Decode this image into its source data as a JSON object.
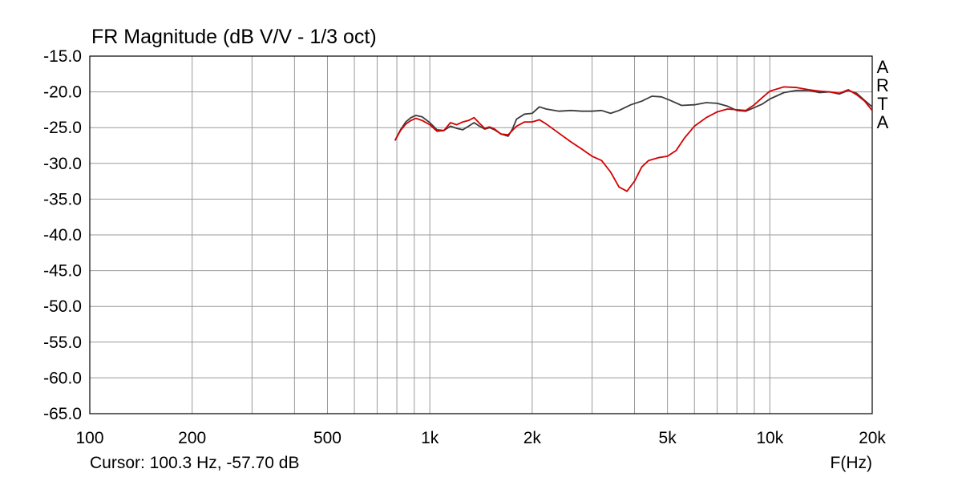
{
  "chart_data": {
    "type": "line",
    "title": "FR Magnitude (dB V/V - 1/3 oct)",
    "xlabel": "F(Hz)",
    "ylabel": "",
    "xscale": "log",
    "xlim": [
      100,
      20000
    ],
    "ylim": [
      -65,
      -15
    ],
    "grid": true,
    "x_tick_values": [
      100,
      200,
      500,
      1000,
      2000,
      5000,
      10000,
      20000
    ],
    "x_tick_labels": [
      "100",
      "200",
      "500",
      "1k",
      "2k",
      "5k",
      "10k",
      "20k"
    ],
    "y_tick_values": [
      -15,
      -20,
      -25,
      -30,
      -35,
      -40,
      -45,
      -50,
      -55,
      -60,
      -65
    ],
    "y_tick_labels": [
      "-15.0",
      "-20.0",
      "-25.0",
      "-30.0",
      "-35.0",
      "-40.0",
      "-45.0",
      "-50.0",
      "-55.0",
      "-60.0",
      "-65.0"
    ],
    "series": [
      {
        "color": "#3c3c3c",
        "points": [
          [
            790,
            -26.8
          ],
          [
            820,
            -25.3
          ],
          [
            850,
            -24.2
          ],
          [
            880,
            -23.6
          ],
          [
            910,
            -23.3
          ],
          [
            950,
            -23.5
          ],
          [
            1000,
            -24.3
          ],
          [
            1050,
            -25.3
          ],
          [
            1100,
            -25.4
          ],
          [
            1150,
            -24.8
          ],
          [
            1200,
            -25.1
          ],
          [
            1250,
            -25.3
          ],
          [
            1300,
            -24.8
          ],
          [
            1350,
            -24.3
          ],
          [
            1400,
            -24.8
          ],
          [
            1450,
            -25.2
          ],
          [
            1500,
            -25.0
          ],
          [
            1550,
            -25.3
          ],
          [
            1620,
            -25.9
          ],
          [
            1700,
            -26.2
          ],
          [
            1750,
            -25.2
          ],
          [
            1800,
            -23.8
          ],
          [
            1900,
            -23.1
          ],
          [
            2000,
            -23.0
          ],
          [
            2100,
            -22.1
          ],
          [
            2200,
            -22.4
          ],
          [
            2400,
            -22.7
          ],
          [
            2600,
            -22.6
          ],
          [
            2800,
            -22.7
          ],
          [
            3000,
            -22.7
          ],
          [
            3200,
            -22.6
          ],
          [
            3400,
            -23.0
          ],
          [
            3600,
            -22.6
          ],
          [
            3900,
            -21.8
          ],
          [
            4200,
            -21.3
          ],
          [
            4500,
            -20.6
          ],
          [
            4800,
            -20.7
          ],
          [
            5100,
            -21.2
          ],
          [
            5500,
            -21.9
          ],
          [
            6000,
            -21.8
          ],
          [
            6500,
            -21.5
          ],
          [
            7000,
            -21.6
          ],
          [
            7500,
            -22.0
          ],
          [
            8000,
            -22.6
          ],
          [
            8500,
            -22.7
          ],
          [
            9000,
            -22.2
          ],
          [
            9500,
            -21.7
          ],
          [
            10000,
            -21.0
          ],
          [
            11000,
            -20.1
          ],
          [
            12000,
            -19.8
          ],
          [
            13000,
            -19.8
          ],
          [
            14000,
            -20.1
          ],
          [
            15000,
            -20.0
          ],
          [
            16000,
            -20.3
          ],
          [
            17000,
            -19.8
          ],
          [
            18000,
            -20.2
          ],
          [
            19000,
            -21.2
          ],
          [
            20000,
            -22.1
          ]
        ]
      },
      {
        "color": "#d40000",
        "points": [
          [
            790,
            -26.8
          ],
          [
            820,
            -25.4
          ],
          [
            850,
            -24.5
          ],
          [
            880,
            -24.0
          ],
          [
            910,
            -23.7
          ],
          [
            950,
            -24.0
          ],
          [
            1000,
            -24.6
          ],
          [
            1050,
            -25.5
          ],
          [
            1100,
            -25.4
          ],
          [
            1150,
            -24.3
          ],
          [
            1200,
            -24.6
          ],
          [
            1250,
            -24.2
          ],
          [
            1300,
            -24.0
          ],
          [
            1350,
            -23.6
          ],
          [
            1400,
            -24.4
          ],
          [
            1450,
            -25.1
          ],
          [
            1500,
            -24.9
          ],
          [
            1550,
            -25.2
          ],
          [
            1620,
            -25.9
          ],
          [
            1700,
            -26.0
          ],
          [
            1800,
            -24.8
          ],
          [
            1900,
            -24.2
          ],
          [
            2000,
            -24.2
          ],
          [
            2100,
            -23.9
          ],
          [
            2200,
            -24.5
          ],
          [
            2400,
            -25.8
          ],
          [
            2600,
            -27.0
          ],
          [
            2800,
            -28.0
          ],
          [
            3000,
            -29.0
          ],
          [
            3200,
            -29.6
          ],
          [
            3400,
            -31.2
          ],
          [
            3600,
            -33.3
          ],
          [
            3800,
            -33.9
          ],
          [
            4000,
            -32.5
          ],
          [
            4200,
            -30.5
          ],
          [
            4400,
            -29.6
          ],
          [
            4700,
            -29.2
          ],
          [
            5000,
            -29.0
          ],
          [
            5300,
            -28.2
          ],
          [
            5600,
            -26.5
          ],
          [
            6000,
            -24.8
          ],
          [
            6500,
            -23.6
          ],
          [
            7000,
            -22.8
          ],
          [
            7500,
            -22.4
          ],
          [
            8000,
            -22.5
          ],
          [
            8500,
            -22.6
          ],
          [
            9000,
            -21.8
          ],
          [
            9500,
            -20.8
          ],
          [
            10000,
            -19.9
          ],
          [
            11000,
            -19.3
          ],
          [
            12000,
            -19.4
          ],
          [
            13000,
            -19.7
          ],
          [
            14000,
            -19.9
          ],
          [
            15000,
            -20.0
          ],
          [
            16000,
            -20.2
          ],
          [
            17000,
            -19.7
          ],
          [
            18000,
            -20.4
          ],
          [
            19000,
            -21.3
          ],
          [
            20000,
            -22.6
          ]
        ]
      }
    ]
  },
  "cursor_readout": "Cursor: 100.3 Hz, -57.70 dB",
  "watermark": [
    "A",
    "R",
    "T",
    "A"
  ]
}
